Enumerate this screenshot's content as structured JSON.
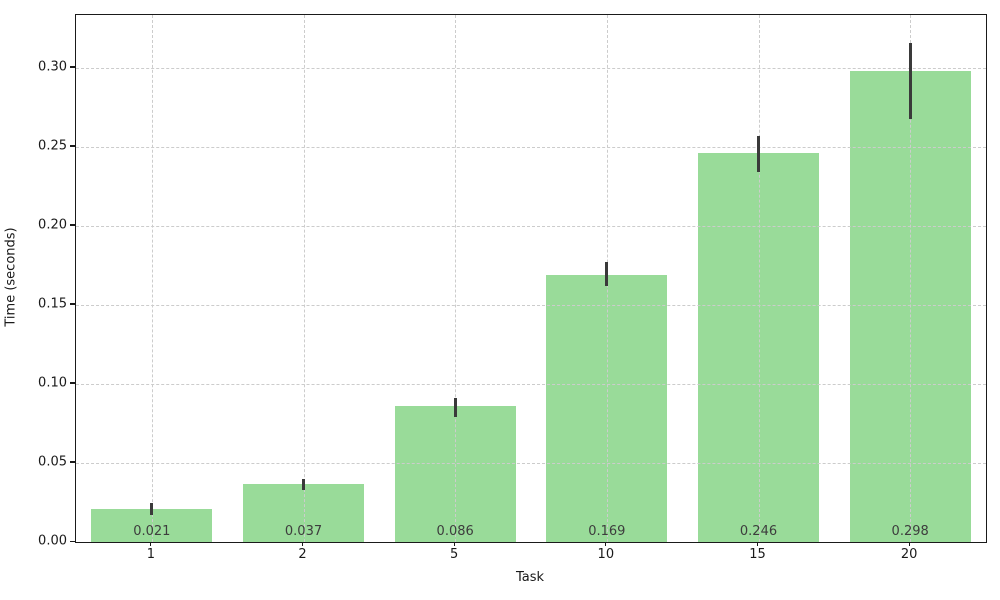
{
  "chart_data": {
    "type": "bar",
    "title": "",
    "xlabel": "Task",
    "ylabel": "Time (seconds)",
    "categories": [
      "1",
      "2",
      "5",
      "10",
      "15",
      "20"
    ],
    "values": [
      0.021,
      0.037,
      0.086,
      0.169,
      0.246,
      0.298
    ],
    "value_labels": [
      "0.021",
      "0.037",
      "0.086",
      "0.169",
      "0.246",
      "0.298"
    ],
    "error_low": [
      0.017,
      0.033,
      0.079,
      0.162,
      0.234,
      0.268
    ],
    "error_high": [
      0.025,
      0.04,
      0.091,
      0.177,
      0.257,
      0.316
    ],
    "yticks": [
      0.0,
      0.05,
      0.1,
      0.15,
      0.2,
      0.25,
      0.3
    ],
    "ytick_labels": [
      "0.00",
      "0.05",
      "0.10",
      "0.15",
      "0.20",
      "0.25",
      "0.30"
    ],
    "ylim": [
      0,
      0.3335
    ],
    "grid": "dashed, both axes, drawn above bars",
    "legend": null,
    "bar_color": "#99db99",
    "error_bar_color": "#3a3a3a",
    "value_label_color": "#3d3d3d",
    "bar_width_fraction": 0.8
  }
}
